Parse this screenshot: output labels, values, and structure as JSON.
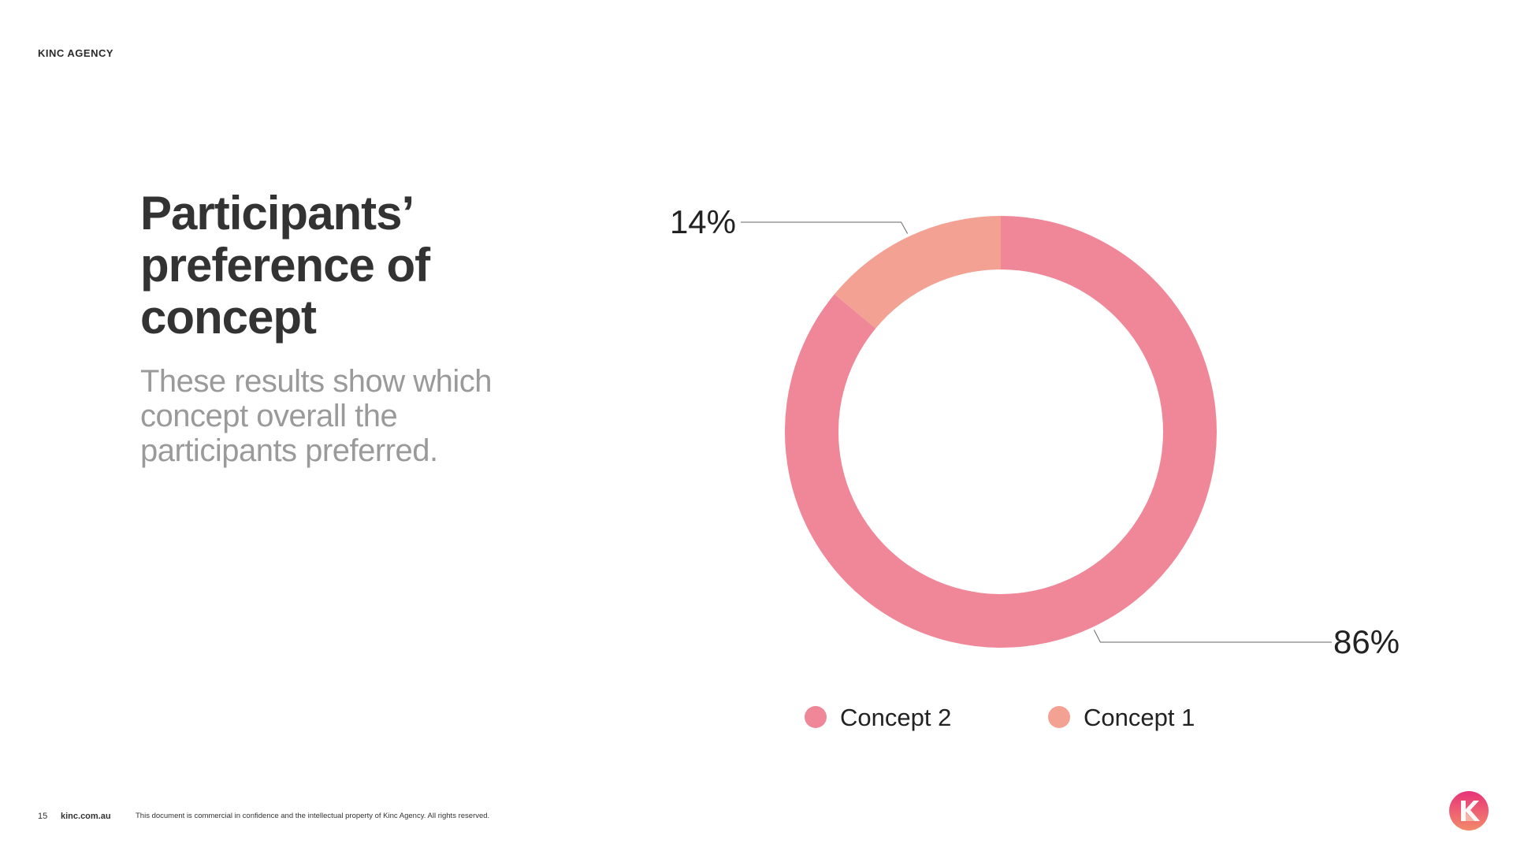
{
  "header": {
    "brand": "KINC AGENCY"
  },
  "main": {
    "title_lines": [
      "Participants’",
      "preference of",
      "concept"
    ],
    "subtitle_lines": [
      "These results show which",
      "concept overall the",
      "participants preferred."
    ]
  },
  "chart_data": {
    "type": "pie",
    "donut": true,
    "categories": [
      "Concept 2",
      "Concept 1"
    ],
    "values": [
      86,
      14
    ],
    "value_labels": [
      "86%",
      "14%"
    ],
    "colors": [
      "#EF8799",
      "#F2A193"
    ],
    "legend": "bottom",
    "title": "",
    "xlabel": "",
    "ylabel": ""
  },
  "footer": {
    "page_number": "15",
    "site": "kinc.com.au",
    "notice": "This document is commercial in confidence and the intellectual property of Kinc Agency. All rights reserved."
  },
  "colors": {
    "title": "#333333",
    "subtitle": "#9a9a9a",
    "logo_gradient_top": "#E8337A",
    "logo_gradient_bottom": "#F28A6A"
  },
  "icons": {
    "logo": "kinc-logo-icon"
  }
}
